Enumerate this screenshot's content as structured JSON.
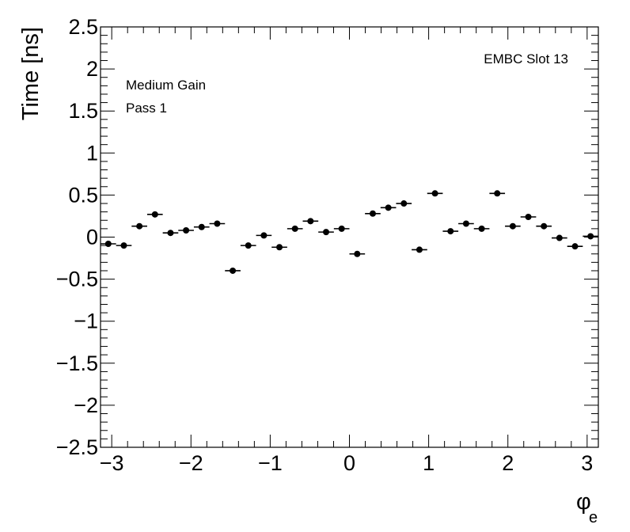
{
  "chart_data": {
    "type": "scatter",
    "title": "",
    "xlabel": "φ",
    "xlabel_sub": "e",
    "ylabel": "Time [ns]",
    "xlim": [
      -3.1416,
      3.1416
    ],
    "ylim": [
      -2.5,
      2.5
    ],
    "grid": false,
    "legend": "none",
    "xticks": [
      -3,
      -2,
      -1,
      0,
      1,
      2,
      3
    ],
    "xtick_labels": [
      "−3",
      "−2",
      "−1",
      "0",
      "1",
      "2",
      "3"
    ],
    "yticks": [
      2.5,
      2,
      1.5,
      1,
      0.5,
      0,
      -0.5,
      -1,
      -1.5,
      -2,
      -2.5
    ],
    "ytick_labels": [
      "2.5",
      "2",
      "1.5",
      "1",
      "0.5",
      "0",
      "−0.5",
      "−1",
      "−1.5",
      "−2",
      "−2.5"
    ],
    "annotations": {
      "top_right": "EMBC Slot 13",
      "line1": "Medium Gain",
      "line2": "Pass 1"
    },
    "bin_half_width": 0.0982,
    "x": [
      -3.0434,
      -2.8471,
      -2.6507,
      -2.4544,
      -2.258,
      -2.0617,
      -1.8653,
      -1.669,
      -1.4726,
      -1.2763,
      -1.0799,
      -0.8836,
      -0.6872,
      -0.4909,
      -0.2945,
      -0.0982,
      0.0982,
      0.2945,
      0.4909,
      0.6872,
      0.8836,
      1.0799,
      1.2763,
      1.4726,
      1.669,
      1.8653,
      2.0617,
      2.258,
      2.4544,
      2.6507,
      2.8471,
      3.0434
    ],
    "y": [
      -0.08,
      -0.1,
      0.13,
      0.27,
      0.05,
      0.08,
      0.12,
      0.16,
      -0.4,
      -0.1,
      0.02,
      -0.12,
      0.1,
      0.19,
      0.06,
      0.1,
      -0.2,
      0.28,
      0.35,
      0.4,
      -0.15,
      0.52,
      0.07,
      0.16,
      0.1,
      0.52,
      0.13,
      0.24,
      0.13,
      -0.01,
      -0.11,
      0.01
    ],
    "marker_color": "#000000"
  }
}
